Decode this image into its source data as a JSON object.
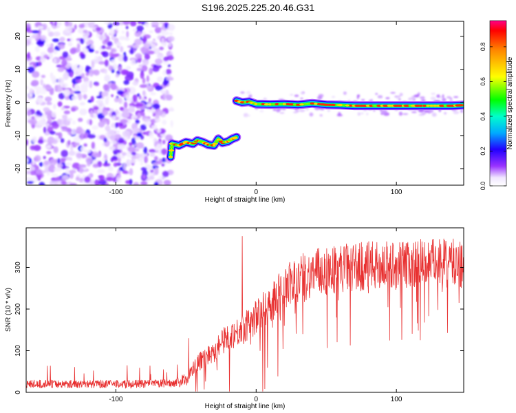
{
  "title": "S196.2025.225.20.46.G31",
  "chart_data": [
    {
      "type": "heatmap",
      "title": "S196.2025.225.20.46.G31",
      "xlabel": "Height of straight line (km)",
      "ylabel": "Frequency (Hz)",
      "xlim": [
        -164,
        148
      ],
      "ylim": [
        -25,
        24.5
      ],
      "xticks": [
        -100,
        0,
        100
      ],
      "yticks": [
        -20,
        -10,
        0,
        10,
        20
      ],
      "colorbar": {
        "label": "Normalized spectral amplitude",
        "range": [
          0.0,
          0.95
        ],
        "ticks": [
          0.0,
          0.2,
          0.4,
          0.6,
          0.8
        ]
      },
      "noise_region": {
        "x": [
          -164,
          -60
        ],
        "y": [
          -25,
          24.5
        ],
        "amplitude": "low (~0.0-0.2)"
      },
      "signal_segments": [
        {
          "name": "low-frequency segment",
          "points": [
            [
              -61,
              -16.5
            ],
            [
              -60,
              -12.5
            ],
            [
              -55,
              -13
            ],
            [
              -50,
              -12
            ],
            [
              -45,
              -12.5
            ],
            [
              -42,
              -11.5
            ],
            [
              -38,
              -12
            ],
            [
              -34,
              -12.8
            ],
            [
              -30,
              -13
            ],
            [
              -27,
              -11
            ],
            [
              -24,
              -12.2
            ],
            [
              -20,
              -11.8
            ],
            [
              -17,
              -11
            ],
            [
              -14,
              -10.5
            ]
          ]
        },
        {
          "name": "near-zero segment",
          "points": [
            [
              -14,
              0.5
            ],
            [
              -10,
              0
            ],
            [
              -5,
              0.2
            ],
            [
              0,
              -0.5
            ],
            [
              10,
              -0.6
            ],
            [
              20,
              -0.5
            ],
            [
              30,
              -0.7
            ],
            [
              40,
              -0.3
            ],
            [
              50,
              -0.7
            ],
            [
              60,
              -0.8
            ],
            [
              70,
              -1
            ],
            [
              80,
              -1
            ],
            [
              90,
              -1
            ],
            [
              100,
              -1
            ],
            [
              110,
              -1
            ],
            [
              120,
              -1
            ],
            [
              130,
              -1
            ],
            [
              140,
              -1
            ],
            [
              148,
              -0.8
            ]
          ]
        }
      ]
    },
    {
      "type": "line",
      "title": "",
      "xlabel": "Height of straight line (km)",
      "ylabel": "SNR (10 * v/v)",
      "xlim": [
        -164,
        148
      ],
      "ylim": [
        0,
        395
      ],
      "xticks": [
        -100,
        0,
        100
      ],
      "yticks": [
        0,
        100,
        200,
        300
      ],
      "series": [
        {
          "name": "SNR",
          "color": "#e83030",
          "trend_x": [
            -164,
            -120,
            -80,
            -60,
            -50,
            -45,
            -40,
            -30,
            -20,
            -10,
            0,
            10,
            20,
            30,
            40,
            60,
            80,
            100,
            120,
            148
          ],
          "trend_y": [
            20,
            20,
            20,
            22,
            30,
            55,
            75,
            100,
            135,
            150,
            180,
            215,
            250,
            270,
            285,
            298,
            303,
            305,
            310,
            310
          ],
          "spikes": [
            [
              -10,
              375
            ],
            [
              -48,
              130
            ],
            [
              -92,
              65
            ]
          ]
        }
      ]
    }
  ]
}
